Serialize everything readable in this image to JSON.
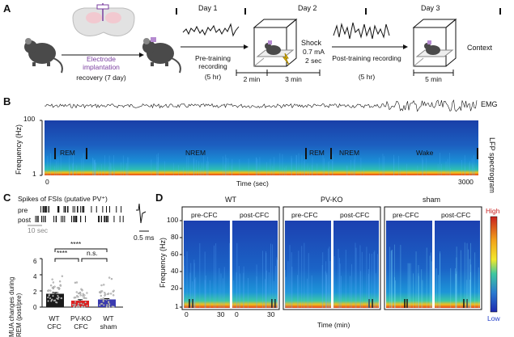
{
  "panels": {
    "a": "A",
    "b": "B",
    "c": "C",
    "d": "D"
  },
  "panel_a": {
    "day1": "Day 1",
    "day2": "Day 2",
    "day3": "Day 3",
    "electrode_implantation": "Electrode implantation",
    "recovery": "recovery (7 day)",
    "pretraining": "Pre-training recording",
    "pretraining_dur": "(5 hr)",
    "shock": "Shock",
    "shock_ma": "0.7 mA",
    "shock_sec": "2 sec",
    "min2": "2 min",
    "min3": "3 min",
    "posttraining": "Post-training recording",
    "posttraining_dur": "(5 hr)",
    "context": "Context",
    "min5": "5 min"
  },
  "panel_b": {
    "emg": "EMG",
    "lfp_spectrogram": "LFP spectrogram",
    "ylabel": "Frequency (Hz)",
    "y_top": "100",
    "y_bottom": "1",
    "xlabel": "Time (sec)",
    "x_start": "0",
    "x_end": "3000",
    "states": [
      "REM",
      "NREM",
      "REM",
      "NREM",
      "Wake"
    ]
  },
  "panel_c": {
    "title": "Spikes of FSIs (putative PV⁺)",
    "pre": "pre",
    "post": "post",
    "scale_time": "10 sec",
    "scale_wave": "0.5 ms",
    "sig_top": "****",
    "sig_left": "****",
    "sig_right": "n.s.",
    "ylabel": "MUA changes during REM (post/pre)",
    "groups": [
      "WT CFC",
      "PV-KO CFC",
      "WT sham"
    ]
  },
  "panel_d": {
    "groups": [
      "WT",
      "PV-KO",
      "sham"
    ],
    "pre_label": "pre-CFC",
    "post_label": "post-CFC",
    "ylabel": "Frequency (Hz)",
    "yticks": [
      "100",
      "80",
      "60",
      "40",
      "20",
      "1"
    ],
    "x0": "0",
    "x30": "30",
    "xlabel": "Time (min)",
    "rem": "REM",
    "cbar_high": "High",
    "cbar_low": "Low"
  },
  "chart_data": {
    "type": "bar",
    "categories": [
      "WT CFC",
      "PV-KO CFC",
      "WT sham"
    ],
    "values": [
      1.65,
      0.8,
      0.95
    ],
    "errors": [
      0.15,
      0.12,
      0.1
    ],
    "colors": [
      "#1a1a1a",
      "#e02020",
      "#3a3ab0"
    ],
    "ylim": [
      0,
      6
    ],
    "yticks": [
      0,
      2,
      4,
      6
    ],
    "ylabel": "MUA changes during REM (post/pre)",
    "significance": [
      {
        "pair": [
          "WT CFC",
          "WT sham"
        ],
        "label": "****"
      },
      {
        "pair": [
          "WT CFC",
          "PV-KO CFC"
        ],
        "label": "****"
      },
      {
        "pair": [
          "PV-KO CFC",
          "WT sham"
        ],
        "label": "n.s."
      }
    ]
  }
}
